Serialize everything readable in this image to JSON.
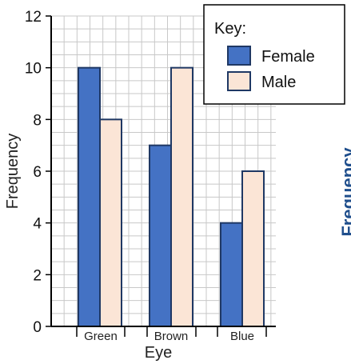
{
  "chart_data": {
    "type": "bar",
    "categories": [
      "Green",
      "Brown",
      "Blue"
    ],
    "series": [
      {
        "name": "Female",
        "values": [
          10,
          7,
          4
        ],
        "color": "#4472c4"
      },
      {
        "name": "Male",
        "values": [
          8,
          10,
          6
        ],
        "color": "#fbe5d6"
      }
    ],
    "xlabel": "Eye",
    "ylabel": "Frequency",
    "ylim": [
      0,
      12
    ],
    "yticks": [
      0,
      2,
      4,
      6,
      8,
      10,
      12
    ],
    "grid": true,
    "legend": {
      "title": "Key:",
      "position": "top-right"
    },
    "bar_outline_color": "#1f3864"
  },
  "side_partial_label": "Frequency"
}
